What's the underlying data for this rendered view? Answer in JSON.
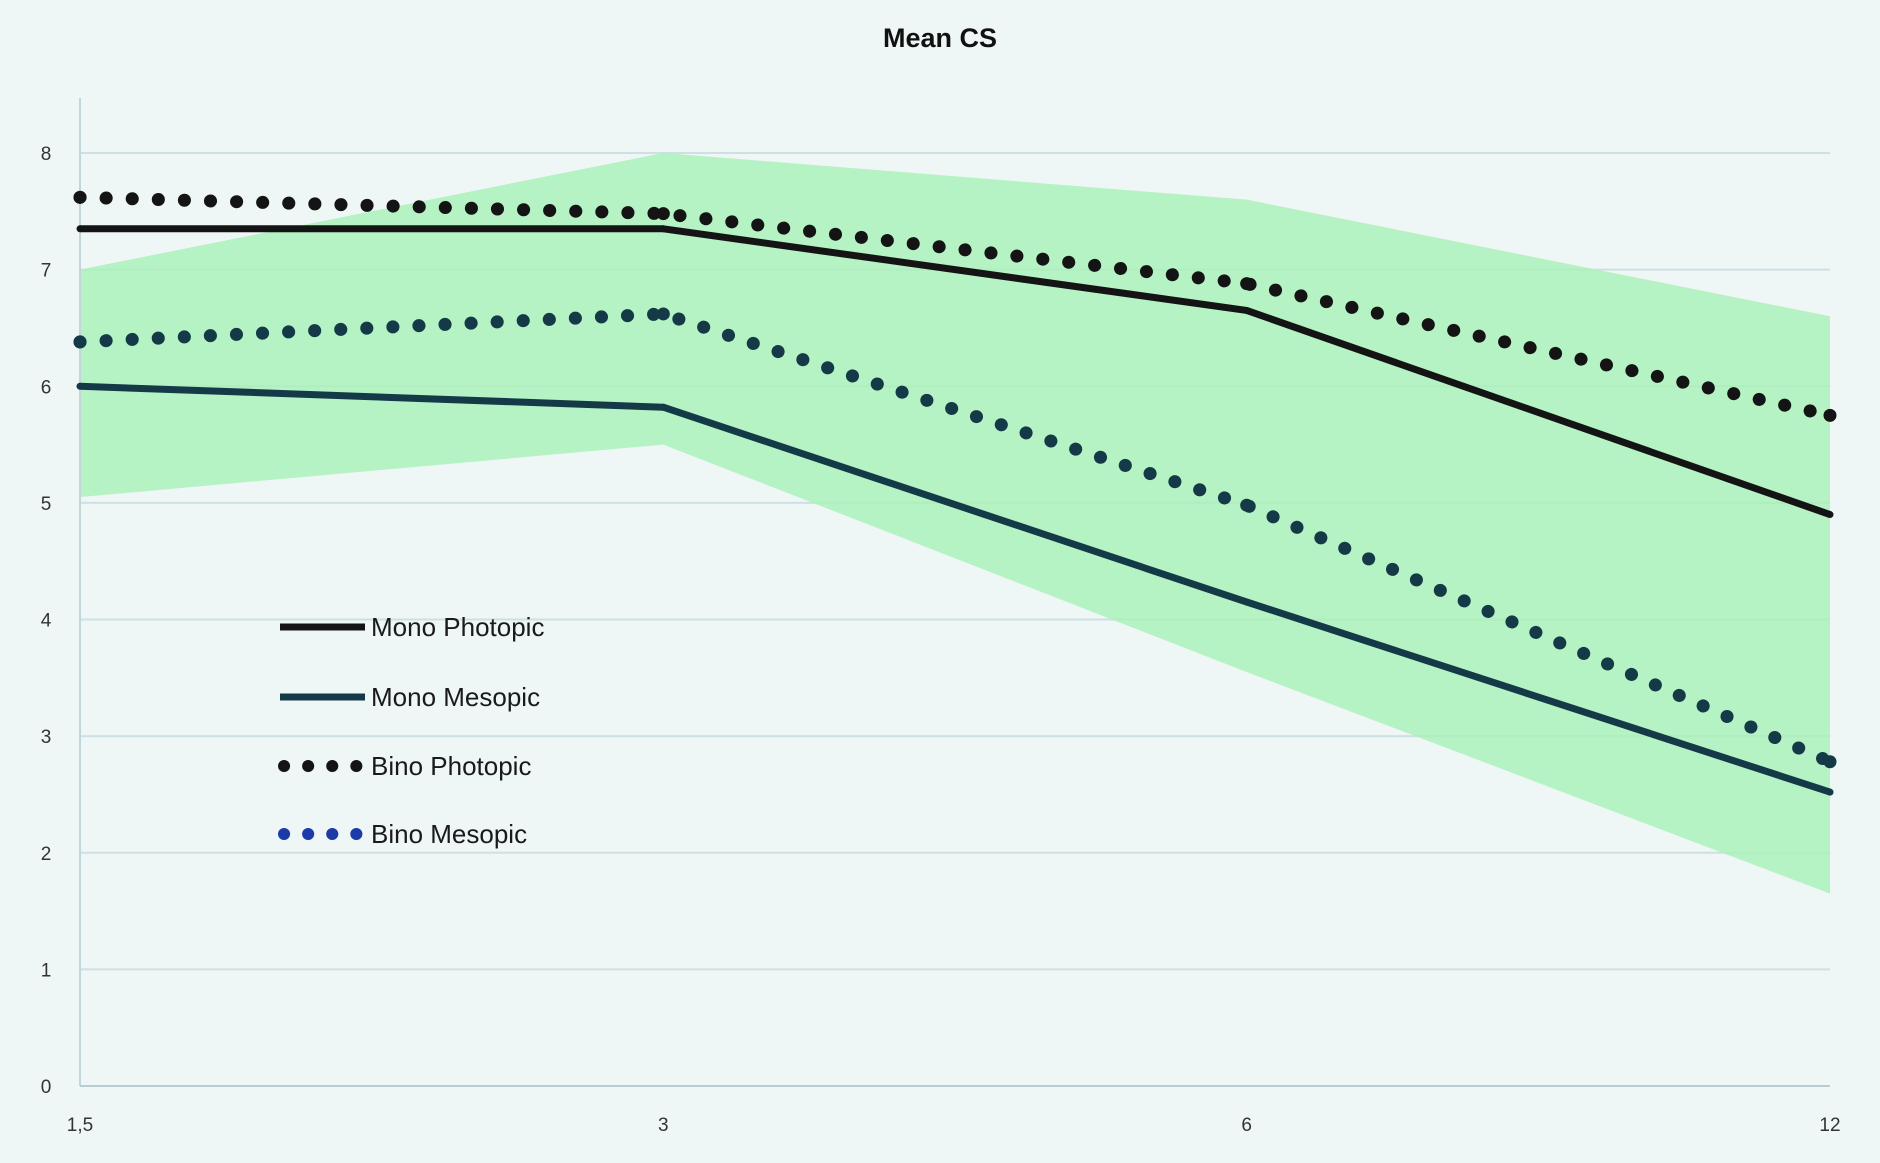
{
  "chart_data": {
    "type": "line",
    "title": "Mean CS",
    "xlabel": "",
    "ylabel": "",
    "categories": [
      "1,5",
      "3",
      "6",
      "12"
    ],
    "ylim": [
      0,
      8
    ],
    "yticks": [
      "0",
      "1",
      "2",
      "3",
      "4",
      "5",
      "6",
      "7",
      "8"
    ],
    "grid": "horizontal",
    "legend_position": "left",
    "band": {
      "upper": [
        7.0,
        8.0,
        7.6,
        6.6
      ],
      "lower": [
        5.05,
        5.5,
        3.55,
        1.65
      ],
      "color": "#a8f0b8"
    },
    "series": [
      {
        "name": "Mono Photopic",
        "values": [
          7.35,
          7.35,
          6.65,
          4.9
        ],
        "style": "solid",
        "color": "#141414"
      },
      {
        "name": "Mono Mesopic",
        "values": [
          6.0,
          5.82,
          4.15,
          2.52
        ],
        "style": "solid",
        "color": "#143a48"
      },
      {
        "name": "Bino Photopic",
        "values": [
          7.62,
          7.48,
          6.88,
          5.75
        ],
        "style": "dotted",
        "color": "#141414"
      },
      {
        "name": "Bino Mesopic",
        "values": [
          6.38,
          6.62,
          4.98,
          2.78
        ],
        "style": "dotted",
        "color": "#143a48"
      }
    ],
    "legend_marker_colors": {
      "Bino Mesopic": "#1c3aa8"
    }
  }
}
